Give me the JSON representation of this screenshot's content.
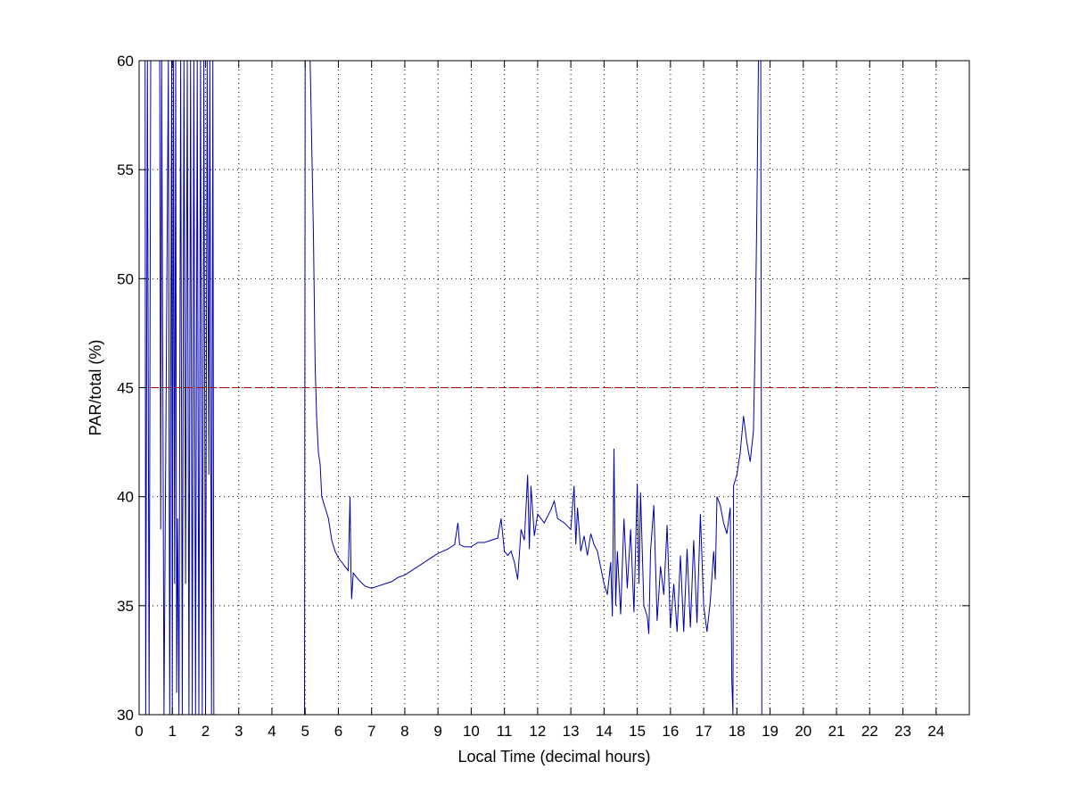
{
  "chart_data": {
    "type": "line",
    "title": "",
    "xlabel": "Local Time (decimal hours)",
    "ylabel": "PAR/total (%)",
    "xlim": [
      0,
      25
    ],
    "ylim": [
      30,
      60
    ],
    "x_ticks": [
      0,
      1,
      2,
      3,
      4,
      5,
      6,
      7,
      8,
      9,
      10,
      11,
      12,
      13,
      14,
      15,
      16,
      17,
      18,
      19,
      20,
      21,
      22,
      23,
      24
    ],
    "y_ticks": [
      30,
      35,
      40,
      45,
      50,
      55,
      60
    ],
    "grid": true,
    "legend": "none",
    "series": [
      {
        "color": "#0000b0",
        "style": "solid",
        "points": [
          [
            0.18,
            60
          ],
          [
            0.2,
            30
          ],
          [
            0.25,
            60
          ],
          [
            0.3,
            30
          ],
          [
            0.35,
            60
          ],
          [
            0.45,
            60
          ],
          [
            0.62,
            60
          ],
          [
            0.65,
            38.5
          ],
          [
            0.68,
            60
          ],
          [
            0.75,
            30
          ],
          [
            0.88,
            60
          ],
          [
            0.92,
            30
          ],
          [
            0.98,
            60
          ],
          [
            1.0,
            30
          ],
          [
            1.03,
            60
          ],
          [
            1.07,
            36
          ],
          [
            1.1,
            60
          ],
          [
            1.13,
            31
          ],
          [
            1.16,
            39
          ],
          [
            1.2,
            30
          ],
          [
            1.25,
            60
          ],
          [
            1.3,
            30
          ],
          [
            1.35,
            60
          ],
          [
            1.4,
            36
          ],
          [
            1.45,
            60
          ],
          [
            1.5,
            30
          ],
          [
            1.55,
            60
          ],
          [
            1.6,
            30
          ],
          [
            1.65,
            60
          ],
          [
            1.7,
            30
          ],
          [
            1.75,
            60
          ],
          [
            1.8,
            30
          ],
          [
            1.85,
            60
          ],
          [
            1.9,
            30
          ],
          [
            1.95,
            60
          ],
          [
            2.0,
            30
          ],
          [
            2.05,
            60
          ],
          [
            2.1,
            41
          ],
          [
            2.13,
            60
          ],
          [
            2.18,
            30
          ],
          [
            2.22,
            60
          ],
          [
            2.25,
            30
          ],
          [
            4.98,
            30
          ],
          [
            5.0,
            60
          ],
          [
            5.15,
            60
          ],
          [
            5.25,
            52
          ],
          [
            5.3,
            46
          ],
          [
            5.35,
            43.5
          ],
          [
            5.4,
            42
          ],
          [
            5.45,
            41.5
          ],
          [
            5.5,
            40
          ],
          [
            5.6,
            39.5
          ],
          [
            5.7,
            39
          ],
          [
            5.8,
            38
          ],
          [
            5.9,
            37.5
          ],
          [
            6.0,
            37.2
          ],
          [
            6.1,
            37
          ],
          [
            6.2,
            36.8
          ],
          [
            6.3,
            36.6
          ],
          [
            6.35,
            40
          ],
          [
            6.38,
            36.6
          ],
          [
            6.4,
            35.3
          ],
          [
            6.45,
            36.5
          ],
          [
            6.6,
            36.2
          ],
          [
            6.8,
            35.9
          ],
          [
            7.0,
            35.8
          ],
          [
            7.2,
            35.9
          ],
          [
            7.4,
            36
          ],
          [
            7.6,
            36.1
          ],
          [
            7.8,
            36.3
          ],
          [
            8.0,
            36.4
          ],
          [
            8.2,
            36.6
          ],
          [
            8.5,
            36.9
          ],
          [
            8.8,
            37.2
          ],
          [
            9.0,
            37.4
          ],
          [
            9.3,
            37.6
          ],
          [
            9.5,
            37.8
          ],
          [
            9.6,
            38.8
          ],
          [
            9.65,
            37.8
          ],
          [
            9.8,
            37.7
          ],
          [
            10.0,
            37.7
          ],
          [
            10.2,
            37.9
          ],
          [
            10.4,
            37.9
          ],
          [
            10.6,
            38
          ],
          [
            10.8,
            38.1
          ],
          [
            10.9,
            39
          ],
          [
            11.0,
            37.5
          ],
          [
            11.1,
            37.3
          ],
          [
            11.2,
            37.5
          ],
          [
            11.3,
            37
          ],
          [
            11.4,
            36.2
          ],
          [
            11.5,
            38.5
          ],
          [
            11.6,
            38
          ],
          [
            11.7,
            41
          ],
          [
            11.75,
            37.6
          ],
          [
            11.8,
            40.5
          ],
          [
            11.9,
            38.2
          ],
          [
            12.0,
            39.2
          ],
          [
            12.2,
            38.8
          ],
          [
            12.4,
            39.4
          ],
          [
            12.5,
            39.8
          ],
          [
            12.6,
            39
          ],
          [
            12.8,
            38.8
          ],
          [
            13.0,
            38.5
          ],
          [
            13.1,
            40.5
          ],
          [
            13.15,
            37.8
          ],
          [
            13.2,
            39.5
          ],
          [
            13.3,
            37.5
          ],
          [
            13.4,
            38.2
          ],
          [
            13.5,
            37.3
          ],
          [
            13.6,
            38.3
          ],
          [
            13.7,
            37.8
          ],
          [
            13.8,
            37.5
          ],
          [
            14.0,
            36
          ],
          [
            14.1,
            35.5
          ],
          [
            14.2,
            37
          ],
          [
            14.25,
            34.5
          ],
          [
            14.3,
            42.2
          ],
          [
            14.35,
            35
          ],
          [
            14.4,
            37.5
          ],
          [
            14.5,
            34.6
          ],
          [
            14.6,
            39
          ],
          [
            14.7,
            35.8
          ],
          [
            14.8,
            38.5
          ],
          [
            14.9,
            34.7
          ],
          [
            15.0,
            40.6
          ],
          [
            15.05,
            36
          ],
          [
            15.1,
            40.2
          ],
          [
            15.2,
            35
          ],
          [
            15.3,
            34.5
          ],
          [
            15.35,
            33.7
          ],
          [
            15.4,
            37.5
          ],
          [
            15.5,
            39.6
          ],
          [
            15.6,
            34.3
          ],
          [
            15.7,
            36.8
          ],
          [
            15.8,
            35.5
          ],
          [
            15.9,
            38.7
          ],
          [
            16.0,
            34
          ],
          [
            16.1,
            36
          ],
          [
            16.2,
            33.8
          ],
          [
            16.3,
            37.3
          ],
          [
            16.4,
            33.8
          ],
          [
            16.5,
            37.6
          ],
          [
            16.6,
            34
          ],
          [
            16.7,
            38
          ],
          [
            16.8,
            34.2
          ],
          [
            16.9,
            39.2
          ],
          [
            17.0,
            35
          ],
          [
            17.1,
            33.8
          ],
          [
            17.2,
            35.2
          ],
          [
            17.3,
            37.5
          ],
          [
            17.35,
            36.2
          ],
          [
            17.4,
            40
          ],
          [
            17.5,
            39.6
          ],
          [
            17.6,
            38.8
          ],
          [
            17.7,
            38.3
          ],
          [
            17.8,
            39.5
          ],
          [
            17.85,
            31.5
          ],
          [
            17.88,
            30
          ],
          [
            17.9,
            40.5
          ],
          [
            18.0,
            41
          ],
          [
            18.1,
            42
          ],
          [
            18.2,
            43.7
          ],
          [
            18.3,
            42.5
          ],
          [
            18.4,
            41.6
          ],
          [
            18.5,
            43
          ],
          [
            18.55,
            47
          ],
          [
            18.6,
            53
          ],
          [
            18.65,
            60
          ],
          [
            18.72,
            60
          ],
          [
            18.75,
            30
          ]
        ]
      },
      {
        "color": "#b00000",
        "style": "dashed",
        "points": [
          [
            0,
            45
          ],
          [
            24,
            45
          ]
        ]
      }
    ]
  }
}
